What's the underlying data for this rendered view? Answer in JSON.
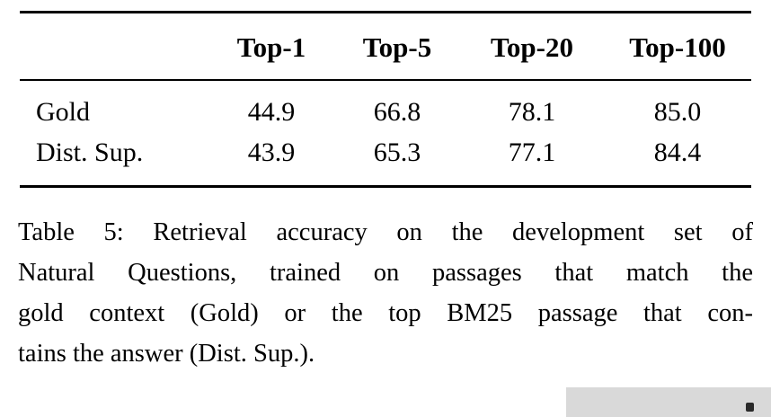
{
  "table": {
    "headers": [
      "",
      "Top-1",
      "Top-5",
      "Top-20",
      "Top-100"
    ],
    "rows": [
      {
        "label": "Gold",
        "values": [
          "44.9",
          "66.8",
          "78.1",
          "85.0"
        ]
      },
      {
        "label": "Dist. Sup.",
        "values": [
          "43.9",
          "65.3",
          "77.1",
          "84.4"
        ]
      }
    ]
  },
  "caption": {
    "lines": [
      "Table 5: Retrieval accuracy on the development set of",
      "Natural Questions, trained on passages that match the",
      "gold context (Gold) or the top BM25 passage that con-",
      "tains the answer (Dist. Sup.)."
    ]
  },
  "colors": {
    "rule": "#000000",
    "background": "#ffffff",
    "artifact_gray": "#d9d9d9"
  },
  "chart_data": {
    "type": "table",
    "title": "Table 5: Retrieval accuracy on the development set of Natural Questions",
    "columns": [
      "Top-1",
      "Top-5",
      "Top-20",
      "Top-100"
    ],
    "series": [
      {
        "name": "Gold",
        "values": [
          44.9,
          66.8,
          78.1,
          85.0
        ]
      },
      {
        "name": "Dist. Sup.",
        "values": [
          43.9,
          65.3,
          77.1,
          84.4
        ]
      }
    ]
  }
}
